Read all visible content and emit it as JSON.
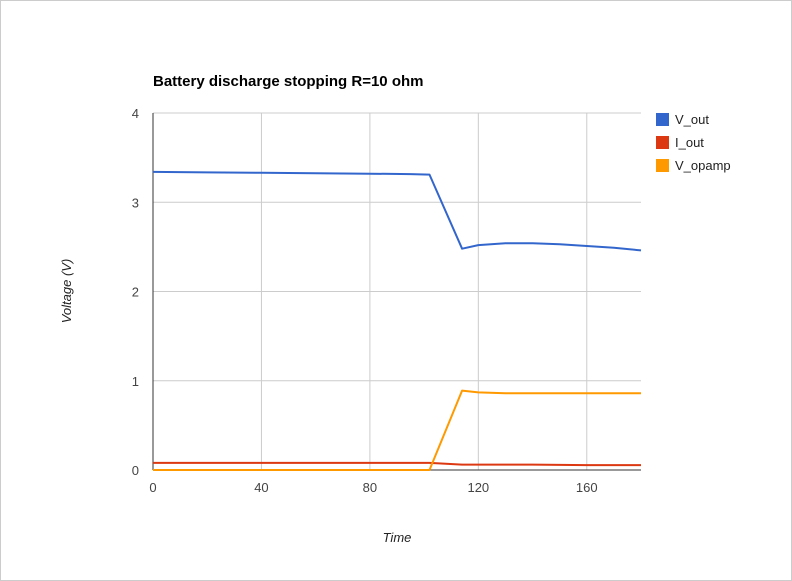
{
  "chart_data": {
    "type": "line",
    "title": "Battery discharge stopping R=10 ohm",
    "xlabel": "Time",
    "ylabel": "Voltage (V)",
    "xlim": [
      0,
      180
    ],
    "ylim": [
      0,
      4
    ],
    "xticks": [
      0,
      40,
      80,
      120,
      160
    ],
    "yticks": [
      0,
      1,
      2,
      3,
      4
    ],
    "grid": true,
    "legend": "right",
    "series": [
      {
        "name": "V_out",
        "color": "#3366cc",
        "x": [
          0,
          20,
          40,
          60,
          80,
          95,
          102,
          114,
          120,
          130,
          140,
          150,
          160,
          170,
          180
        ],
        "y": [
          3.34,
          3.335,
          3.33,
          3.325,
          3.32,
          3.315,
          3.31,
          2.48,
          2.52,
          2.54,
          2.54,
          2.53,
          2.51,
          2.49,
          2.46
        ]
      },
      {
        "name": "I_out",
        "color": "#dc3912",
        "x": [
          0,
          40,
          80,
          102,
          114,
          120,
          140,
          160,
          180
        ],
        "y": [
          0.08,
          0.08,
          0.08,
          0.08,
          0.06,
          0.06,
          0.06,
          0.055,
          0.055
        ]
      },
      {
        "name": "V_opamp",
        "color": "#ff9900",
        "x": [
          0,
          40,
          80,
          102,
          114,
          120,
          130,
          140,
          160,
          180
        ],
        "y": [
          0.0,
          0.0,
          0.0,
          0.0,
          0.89,
          0.87,
          0.86,
          0.86,
          0.86,
          0.86
        ]
      }
    ]
  }
}
